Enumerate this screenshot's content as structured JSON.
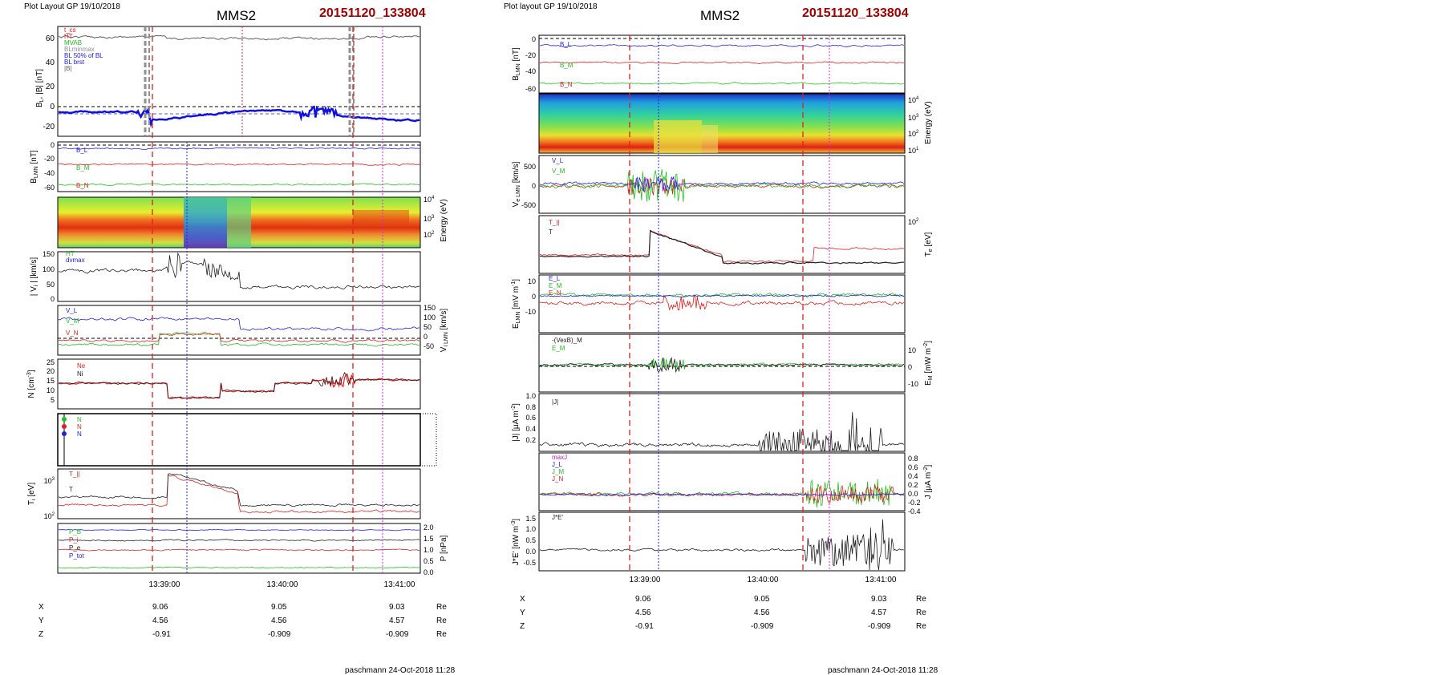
{
  "left": {
    "header": "Plot Layout GP 19/10/2018",
    "title": "MMS2",
    "date_tag": "20151120_133804",
    "footer": "paschmann 24-Oct-2018 11:28",
    "time_ticks": [
      "13:39:00",
      "13:40:00",
      "13:41:00"
    ],
    "ephemeris": {
      "rows": [
        {
          "name": "X",
          "values": [
            "9.06",
            "9.05",
            "9.03"
          ],
          "unit": "Re"
        },
        {
          "name": "Y",
          "values": [
            "4.56",
            "4.56",
            "4.57"
          ],
          "unit": "Re"
        },
        {
          "name": "Z",
          "values": [
            "-0.91",
            "-0.909",
            "-0.909"
          ],
          "unit": "Re"
        }
      ]
    }
  },
  "right": {
    "header": "Plot layout GP 19/10/2018",
    "title": "MMS2",
    "date_tag": "20151120_133804",
    "footer": "paschmann 24-Oct-2018 11:28",
    "time_ticks": [
      "13:39:00",
      "13:40:00",
      "13:41:00"
    ],
    "ephemeris": {
      "rows": [
        {
          "name": "X",
          "values": [
            "9.06",
            "9.05",
            "9.03"
          ],
          "unit": "Re"
        },
        {
          "name": "Y",
          "values": [
            "4.56",
            "4.56",
            "4.57"
          ],
          "unit": "Re"
        },
        {
          "name": "Z",
          "values": [
            "-0.91",
            "-0.909",
            "-0.909"
          ],
          "unit": "Re"
        }
      ]
    }
  },
  "chart_data": [
    {
      "type": "line",
      "figure": "left",
      "x_axis": {
        "type": "time",
        "range": [
          "13:38:14",
          "13:41:20"
        ],
        "ticks": [
          "13:39:00",
          "13:40:00",
          "13:41:00"
        ]
      },
      "vertical_markers": [
        {
          "time": "13:38:43",
          "color": "#e02020",
          "style": "dashed"
        },
        {
          "time": "13:39:17",
          "color": "#2020e0",
          "style": "dotted"
        },
        {
          "time": "13:40:37",
          "color": "#e02020",
          "style": "dashed"
        },
        {
          "time": "13:40:54",
          "color": "#e020e0",
          "style": "dotted"
        }
      ],
      "panels": [
        {
          "id": "B_L_B",
          "ylabel": "B_L |B| [nT]",
          "ylim": [
            -25,
            65
          ],
          "yticks": [
            -20,
            0,
            20,
            40,
            60
          ],
          "legend": [
            "t_cs",
            "HT",
            "MVAB",
            "BLminmax",
            "BL 50% of BL",
            "BL_brst",
            "|B|"
          ],
          "series": [
            {
              "name": "|B|",
              "color": "#606060",
              "level": 60
            },
            {
              "name": "BL_brst",
              "color": "#1010e0",
              "level": -8,
              "bold": true
            }
          ]
        },
        {
          "id": "B_LMN",
          "ylabel": "B_LMN [nT]",
          "ylim": [
            -65,
            5
          ],
          "yticks": [
            -60,
            -40,
            -20,
            0
          ],
          "series": [
            {
              "name": "B_L",
              "color": "#2020e0",
              "level": -8
            },
            {
              "name": "B_M",
              "color": "#e02020",
              "level": -28
            },
            {
              "name": "B_N",
              "color": "#20c020",
              "level": -55
            }
          ]
        },
        {
          "id": "ion_spectrogram",
          "type": "heatmap",
          "ylabel": "Energy (eV)",
          "yticks": [
            "10^2",
            "10^3",
            "10^4"
          ]
        },
        {
          "id": "V_i",
          "ylabel": "|V_i| [km/s]",
          "ylim": [
            0,
            160
          ],
          "yticks": [
            0,
            50,
            100,
            150
          ],
          "legend": [
            "HT",
            "dvmax"
          ],
          "series": [
            {
              "name": "|V_i|",
              "color": "#202020",
              "level": 100
            }
          ]
        },
        {
          "id": "V_i_LMN",
          "ylabel": "V_i LMN [km/s]",
          "ylim": [
            -70,
            160
          ],
          "yticks": [
            -50,
            0,
            50,
            100,
            150
          ],
          "series": [
            {
              "name": "V_L",
              "color": "#2020e0",
              "level": 100
            },
            {
              "name": "V_M",
              "color": "#20c020",
              "level": -30
            },
            {
              "name": "V_N",
              "color": "#e02020",
              "level": -10
            }
          ]
        },
        {
          "id": "N",
          "ylabel": "N [cm^-3]",
          "ylim": [
            0,
            27
          ],
          "yticks": [
            5,
            10,
            15,
            20,
            25
          ],
          "legend": [
            "Ne",
            "Ni"
          ],
          "series": [
            {
              "name": "Ne",
              "color": "#e02020",
              "level": 11
            },
            {
              "name": "Ni",
              "color": "#202020",
              "level": 11
            }
          ]
        },
        {
          "id": "N_ratio",
          "ylabel": "N",
          "legend": [
            "N",
            "N",
            "N"
          ],
          "series": []
        },
        {
          "id": "T_i",
          "ylabel": "T_i [eV]",
          "yscale": "log",
          "yticks": [
            "10^2",
            "10^3"
          ],
          "legend": [
            "T_||",
            "T_perp"
          ],
          "series": [
            {
              "name": "T_||",
              "color": "#e02020",
              "level": 300
            },
            {
              "name": "T_perp",
              "color": "#202020",
              "level": 400
            }
          ]
        },
        {
          "id": "P",
          "ylabel": "P [nPa]",
          "ylim": [
            0,
            2.1
          ],
          "yticks": [
            0.0,
            0.5,
            1.0,
            1.5,
            2.0
          ],
          "legend": [
            "P_B",
            "P_i",
            "P_e",
            "P_tot"
          ],
          "series": [
            {
              "name": "P_tot",
              "color": "#2020e0",
              "level": 1.9
            },
            {
              "name": "P_i",
              "color": "#202020",
              "level": 1.5
            },
            {
              "name": "P_B",
              "color": "#e02020",
              "level": 1.2
            },
            {
              "name": "P_e",
              "color": "#20c020",
              "level": 0.3
            }
          ]
        }
      ]
    },
    {
      "type": "line",
      "figure": "right",
      "x_axis": {
        "type": "time",
        "range": [
          "13:38:14",
          "13:41:20"
        ],
        "ticks": [
          "13:39:00",
          "13:40:00",
          "13:41:00"
        ]
      },
      "vertical_markers": [
        {
          "time": "13:38:47",
          "color": "#e02020",
          "style": "dashed"
        },
        {
          "time": "13:39:05",
          "color": "#2020e0",
          "style": "dotted"
        },
        {
          "time": "13:40:37",
          "color": "#e02020",
          "style": "dashed"
        },
        {
          "time": "13:40:54",
          "color": "#e020e0",
          "style": "dotted"
        }
      ],
      "panels": [
        {
          "id": "B_LMN",
          "ylabel": "B_LMN [nT]",
          "ylim": [
            -65,
            5
          ],
          "yticks": [
            -60,
            -40,
            -20,
            0
          ],
          "series": [
            {
              "name": "B_L",
              "color": "#2020e0",
              "level": -8
            },
            {
              "name": "B_M",
              "color": "#e02020",
              "level": -28
            },
            {
              "name": "B_N",
              "color": "#20c020",
              "level": -55
            }
          ]
        },
        {
          "id": "electron_spectrogram",
          "type": "heatmap",
          "ylabel": "Energy (eV)",
          "yticks": [
            "10^1",
            "10^2",
            "10^3",
            "10^4"
          ]
        },
        {
          "id": "V_e_LMN",
          "ylabel": "V_e LMN [km/s]",
          "ylim": [
            -650,
            750
          ],
          "yticks": [
            -500,
            0,
            500
          ],
          "series": [
            {
              "name": "V_L",
              "color": "#2020e0",
              "level": 50
            },
            {
              "name": "V_M",
              "color": "#20c020",
              "level": 0
            },
            {
              "name": "V_N",
              "color": "#e02020",
              "level": 0
            }
          ]
        },
        {
          "id": "T_e",
          "ylabel": "T_e [eV]",
          "yscale": "log",
          "yticks": [
            "10^2"
          ],
          "legend": [
            "T_||",
            "T"
          ],
          "series": [
            {
              "name": "T_||",
              "color": "#e02020",
              "level": 40
            },
            {
              "name": "T",
              "color": "#202020",
              "level": 35
            }
          ]
        },
        {
          "id": "E_LMN",
          "ylabel": "E_LMN [mV m^-1]",
          "ylim": [
            -18,
            16
          ],
          "yticks": [
            -10,
            0,
            10
          ],
          "legend": [
            "E_L",
            "E_M",
            "E_N"
          ],
          "series": [
            {
              "name": "E_L",
              "color": "#2020e0",
              "level": 0
            },
            {
              "name": "E_M",
              "color": "#20c020",
              "level": 2
            },
            {
              "name": "E_N",
              "color": "#e02020",
              "level": -3
            }
          ]
        },
        {
          "id": "E_M",
          "ylabel": "E_M [mV m^-2]",
          "ylim": [
            -14,
            14
          ],
          "yticks": [
            -10,
            0,
            10
          ],
          "legend": [
            "-(VexB)_M",
            "E_M"
          ],
          "series": [
            {
              "name": "-(VexB)_M",
              "color": "#202020",
              "level": 2
            },
            {
              "name": "E_M",
              "color": "#20c020",
              "level": 1
            }
          ]
        },
        {
          "id": "J_abs",
          "ylabel": "|J| [μA m^-2]",
          "ylim": [
            0,
            1.0
          ],
          "yticks": [
            0.2,
            0.4,
            0.6,
            0.8,
            1.0
          ],
          "legend": [
            "|J|"
          ],
          "series": [
            {
              "name": "|J|",
              "color": "#202020",
              "level": 0.1
            }
          ]
        },
        {
          "id": "J",
          "ylabel": "J [μA m^-2]",
          "ylim": [
            -0.45,
            0.85
          ],
          "yticks": [
            -0.4,
            -0.2,
            0.0,
            0.2,
            0.4,
            0.6,
            0.8
          ],
          "legend": [
            "maxJ",
            "J_L",
            "J_M",
            "J_N"
          ],
          "series": [
            {
              "name": "J_L",
              "color": "#2020e0",
              "level": 0
            },
            {
              "name": "J_M",
              "color": "#20c020",
              "level": 0
            },
            {
              "name": "J_N",
              "color": "#e02020",
              "level": 0
            }
          ]
        },
        {
          "id": "JE",
          "ylabel": "J*E' [nW m^-3]",
          "ylim": [
            -0.75,
            1.8
          ],
          "yticks": [
            -0.5,
            0.0,
            0.5,
            1.0,
            1.5
          ],
          "legend": [
            "J*E'"
          ],
          "series": [
            {
              "name": "J*E'",
              "color": "#202020",
              "level": 0
            }
          ]
        }
      ]
    }
  ]
}
